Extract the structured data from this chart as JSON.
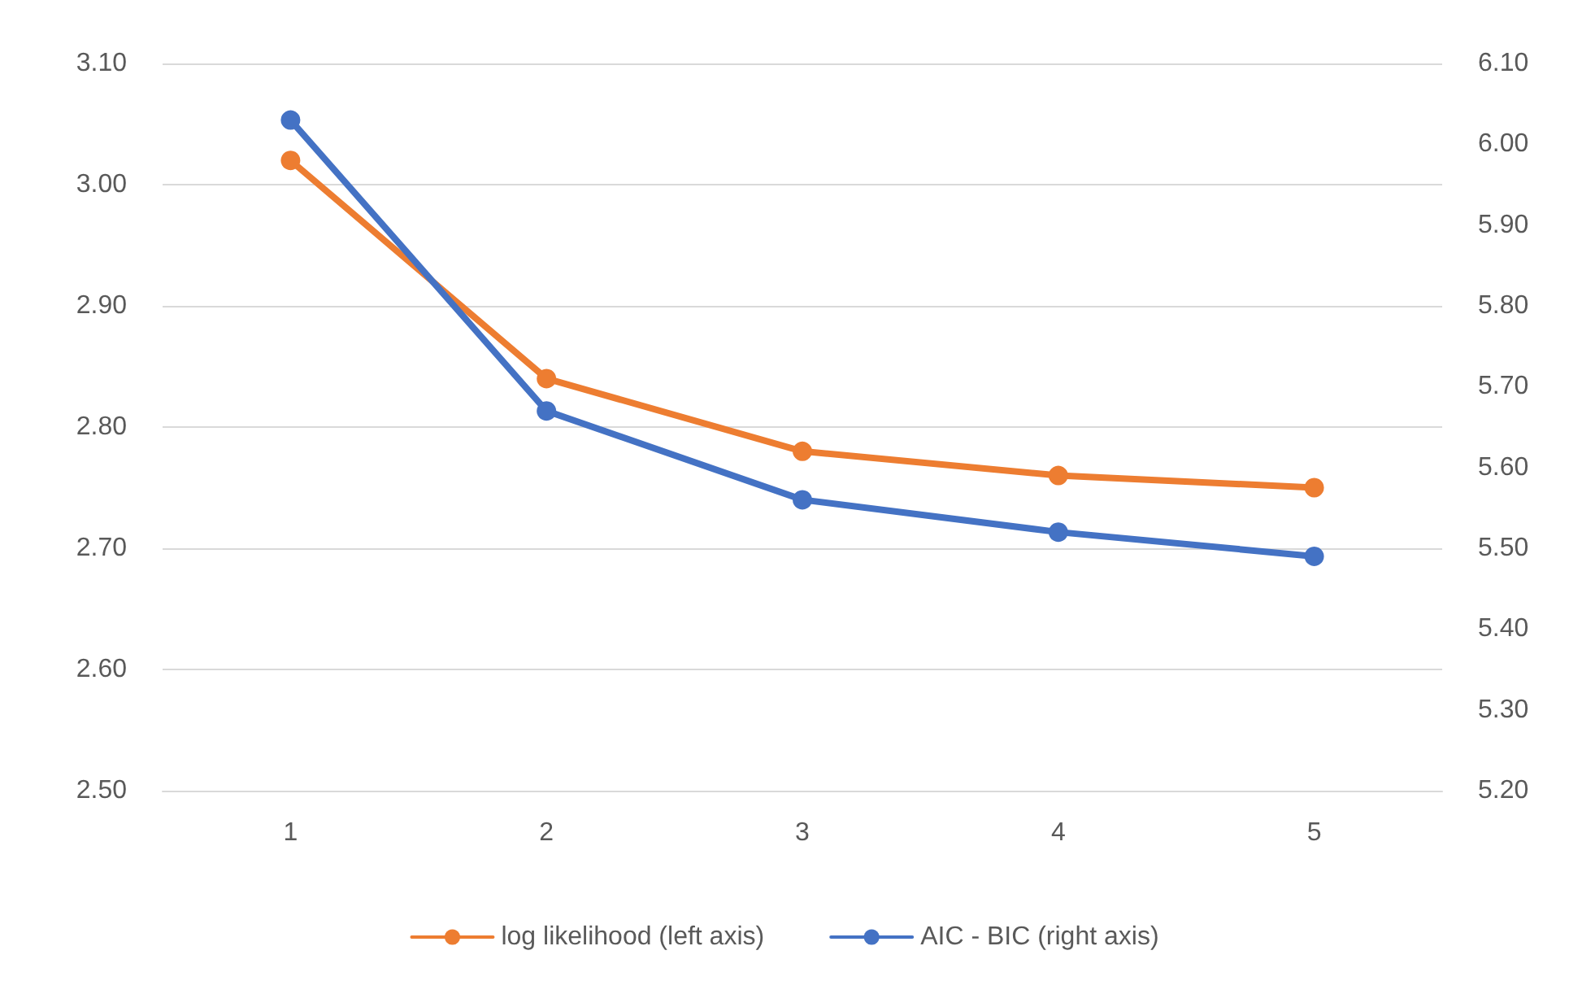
{
  "chart_data": {
    "type": "line",
    "categories": [
      "1",
      "2",
      "3",
      "4",
      "5"
    ],
    "series": [
      {
        "name": "log likelihood (left axis)",
        "color": "#ed7d31",
        "values": [
          3.02,
          2.84,
          2.78,
          2.76,
          2.75
        ]
      },
      {
        "name": "AIC - BIC (right axis)",
        "color": "#4472c4",
        "axis": "y2",
        "values": [
          6.03,
          5.67,
          5.56,
          5.52,
          5.49
        ]
      }
    ],
    "ylim": [
      2.5,
      3.1
    ],
    "yticks": [
      {
        "value": 2.5,
        "label": "2.50"
      },
      {
        "value": 2.6,
        "label": "2.60"
      },
      {
        "value": 2.7,
        "label": "2.70"
      },
      {
        "value": 2.8,
        "label": "2.80"
      },
      {
        "value": 2.9,
        "label": "2.90"
      },
      {
        "value": 3.0,
        "label": "3.00"
      },
      {
        "value": 3.1,
        "label": "3.10"
      }
    ],
    "y2lim": [
      5.2,
      6.1
    ],
    "y2ticks": [
      {
        "value": 5.2,
        "label": "5.20"
      },
      {
        "value": 5.3,
        "label": "5.30"
      },
      {
        "value": 5.4,
        "label": "5.40"
      },
      {
        "value": 5.5,
        "label": "5.50"
      },
      {
        "value": 5.6,
        "label": "5.60"
      },
      {
        "value": 5.7,
        "label": "5.70"
      },
      {
        "value": 5.8,
        "label": "5.80"
      },
      {
        "value": 5.9,
        "label": "5.90"
      },
      {
        "value": 6.0,
        "label": "6.00"
      },
      {
        "value": 6.1,
        "label": "6.10"
      }
    ],
    "grid": "y",
    "legend": "bottom",
    "marker": "circle",
    "line_style": "solid"
  }
}
